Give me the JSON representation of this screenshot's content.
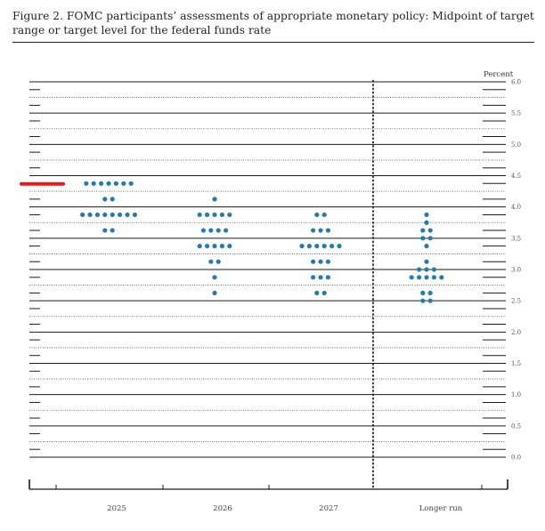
{
  "figure": {
    "caption": "Figure 2.  FOMC participants’ assessments of appropriate monetary policy:  Midpoint of target range or target level for the federal funds rate"
  },
  "chart_data": {
    "type": "scatter",
    "unit_label": "Percent",
    "ylim": [
      0,
      6
    ],
    "yticks": [
      "0.0",
      "0.5",
      "1.0",
      "1.5",
      "2.0",
      "2.5",
      "3.0",
      "3.5",
      "4.0",
      "4.5",
      "5.0",
      "5.5",
      "6.0"
    ],
    "categories": [
      "2025",
      "2026",
      "2027",
      "Longer run"
    ],
    "current_rate": 4.375,
    "dot_color": "#2a7aa8",
    "marker_color": "#e02020",
    "gridlines": true,
    "series": [
      {
        "category": "2025",
        "dots": [
          {
            "y": 4.375,
            "n": 7
          },
          {
            "y": 4.125,
            "n": 2
          },
          {
            "y": 3.875,
            "n": 8
          },
          {
            "y": 3.625,
            "n": 2
          }
        ]
      },
      {
        "category": "2026",
        "dots": [
          {
            "y": 4.125,
            "n": 1
          },
          {
            "y": 3.875,
            "n": 5
          },
          {
            "y": 3.625,
            "n": 4
          },
          {
            "y": 3.375,
            "n": 5
          },
          {
            "y": 3.125,
            "n": 2
          },
          {
            "y": 2.875,
            "n": 1
          },
          {
            "y": 2.625,
            "n": 1
          }
        ]
      },
      {
        "category": "2027",
        "dots": [
          {
            "y": 3.875,
            "n": 2
          },
          {
            "y": 3.625,
            "n": 3
          },
          {
            "y": 3.375,
            "n": 6
          },
          {
            "y": 3.125,
            "n": 3
          },
          {
            "y": 2.875,
            "n": 3
          },
          {
            "y": 2.625,
            "n": 2
          }
        ]
      },
      {
        "category": "Longer run",
        "dots": [
          {
            "y": 3.875,
            "n": 1
          },
          {
            "y": 3.75,
            "n": 1
          },
          {
            "y": 3.625,
            "n": 2
          },
          {
            "y": 3.5,
            "n": 2
          },
          {
            "y": 3.375,
            "n": 1
          },
          {
            "y": 3.125,
            "n": 1
          },
          {
            "y": 3.0,
            "n": 3
          },
          {
            "y": 2.875,
            "n": 5
          },
          {
            "y": 2.625,
            "n": 2
          },
          {
            "y": 2.5,
            "n": 2
          }
        ]
      }
    ]
  }
}
